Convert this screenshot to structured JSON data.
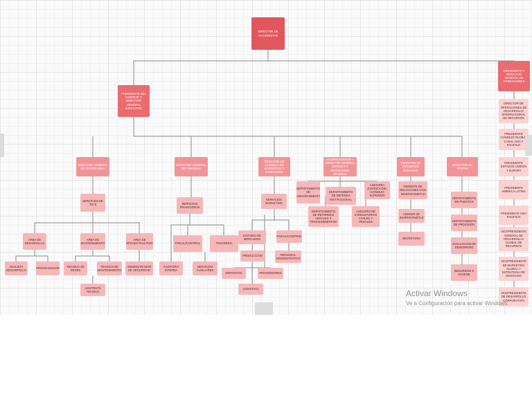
{
  "nodes": {
    "root": "DIRECTOR DE ACCIONISTAS",
    "president_ceo": "PRESIDENTE DEL CONSEJO Y DIRECTOR GENERAL EJECUTIVO",
    "president_ops": "PRESIDENTE Y DIRECTOR GENERAL DE OPERACIONES",
    "dir_tech": "DIRECTOR GENERAL DE TECNOLOGIA",
    "dir_finance": "DIRECTOR GENERAL DE FINANZAS",
    "dir_marketing": "DIRECTOR DE CONSEJO DE MARKETING Y PUBLICIDAD",
    "vp_legal": "VICEPRESIDENTE Y DIRECTOR GENERAL JURIDICO Y SECRETARIO GENERAL",
    "dir_hr": "DIRECTOR DE RECURSOS HUMANOS",
    "dir_sales": "DIRECTOR DE VENTAS",
    "it_services": "SERVICIOS DE TIC'S",
    "area_dev": "AREA DE DESARROLLO",
    "area_env": "AREA DE MANTENIMIENTO",
    "area_infra": "AREA DE INFRAESTRUCTURA",
    "analyst": "ANALISTA DESARROLLO",
    "programmer": "PROGRAMADOR",
    "tech_support": "TECNICO DE REDES",
    "tech_maint": "TECNICO DE MANTENIMIENTO",
    "tech_assistant": "ASISTENTE TECNICO",
    "sec_admin": "ADMINISTRADOR DE SEGURIDAD",
    "fin_services": "SERVICIOS FINANCIEROS",
    "fiscal": "FISCAL/CONTROL",
    "treasury": "TESORERIA",
    "audit": "AUDITORIA INTERNA",
    "aux_services": "SERVICIOS AUXILIARES",
    "mkt_services": "SERVICIOS MARKETING",
    "market_study": "ESTUDIO DE MERCADOS",
    "fiscal_control": "FISCAL/CONTROL",
    "product": "PRODUCCION",
    "staff_admin": "PERSONAL ADMINISTRATIVO",
    "storage": "DEPOSITOS",
    "providers": "PROVEEDORES",
    "logistics": "LOGISTICO",
    "dept_advice": "DEPARTAMENTO DE ASESORAMIENTO",
    "dept_defense": "DEPARTAMENTO DE DEFENSA INSTITUCIONAL",
    "legal_advisor": "ASESORIA JURIDICA DEL CONSEJO SUPERIOR",
    "dept_reform": "DEPARTAMENTO DE REFORMAS LEGALES Y PROCEDIMIENTOS",
    "consulting": "ASESORIA DE CONSULTORIAS CIVILES Y PENALES",
    "hr_relations": "GERENTE DE RELACIONES CON INVERSIONISTAS",
    "hr_investment": "ASESOR DE INVERSIONISTAS",
    "secretary": "SECRETARIA",
    "dept_posts": "DEPARTAMENTO DE PUESTOS",
    "dept_provision": "DEPARTAMENTO DE PROVISION",
    "performance": "EVALUACION DE DESEMPEÑO",
    "safety": "SEGURIDAD E HIGIENE",
    "ops_1": "DIRECTOR DE OPERACIONES DE DESARROLLO INTERNACIONAL DE RECURSOS",
    "ops_2": "PRESIDENTE CONSEJO GLOBAL CANAL ASIA Y PACIFICO",
    "ops_3": "PRESIDENTE ESTADOS UNIDOS Y EUROPA",
    "ops_4": "PRESIDENTE AMERICA LATINA",
    "ops_5": "PRESIDENTE ASIA PACIFICO",
    "ops_6": "VICEPRESIDENTE GENERAL DE DESARROLLO GLOBAL DE RECURSOS",
    "ops_7": "VICEPRESIDENTE DE MARKETING GLOBAL Y ESTRATEGIA DE NEGOCIOS",
    "ops_8": "VICEPRESIDENTE DE DESARROLLO CORPORATIVO"
  },
  "watermark": {
    "title": "Activar Windows",
    "subtitle": "Ve a Configuración para activar Windows."
  },
  "colors": {
    "root": "#e2575f",
    "level1": "#ea6b70",
    "level2": "#f19497",
    "level3": "#f6b7b9",
    "level4": "#fbd1d2",
    "connector": "#8a8a8a"
  }
}
